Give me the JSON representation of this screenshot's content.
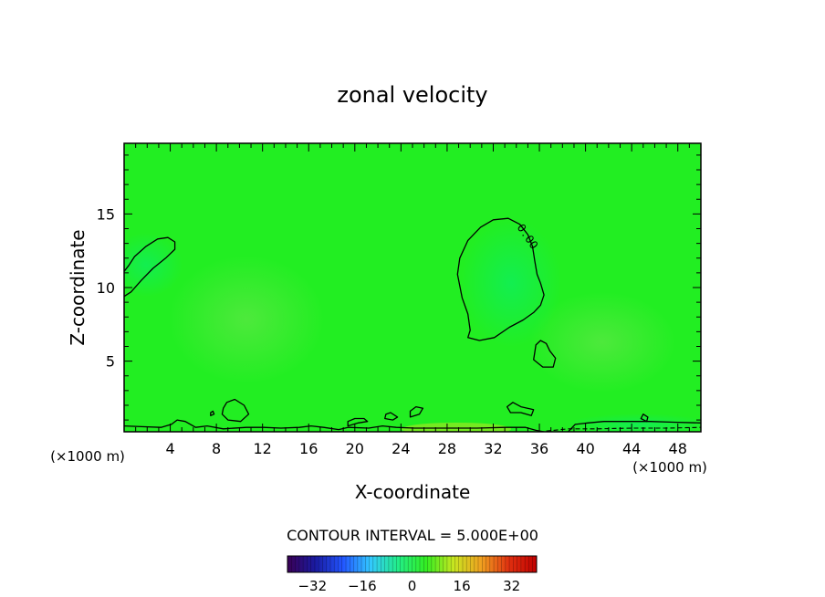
{
  "chart_data": {
    "type": "contour",
    "title": "zonal velocity",
    "xlabel": "X-coordinate",
    "ylabel": "Z-coordinate",
    "x_unit_label": "(×1000 m)",
    "x_unit_label_left": "(×1000 m)",
    "xlim": [
      0,
      50
    ],
    "ylim": [
      0.2,
      19.8
    ],
    "xticks": [
      4,
      8,
      12,
      16,
      20,
      24,
      28,
      32,
      36,
      40,
      44,
      48
    ],
    "yticks": [
      5,
      10,
      15
    ],
    "contour_interval_label": "CONTOUR INTERVAL = 5.000E+00",
    "contour_label": "0.00",
    "field_color": "#22ee22",
    "contour_color": "#000000",
    "colorbar": {
      "range": [
        -40,
        40
      ],
      "ticks": [
        -32,
        -16,
        0,
        16,
        32
      ],
      "tick_labels": [
        "−32",
        "−16",
        "0",
        "16",
        "32"
      ],
      "stops": [
        "#3a0055",
        "#1a1aa0",
        "#2255ff",
        "#33c8ff",
        "#22ee88",
        "#33ee22",
        "#c8e620",
        "#f0a020",
        "#e03010",
        "#c00000"
      ]
    },
    "contours": [
      {
        "name": "left-vortex",
        "points": [
          [
            0,
            9.4
          ],
          [
            0.6,
            9.7
          ],
          [
            1.5,
            10.5
          ],
          [
            2.5,
            11.3
          ],
          [
            3.6,
            12
          ],
          [
            4.4,
            12.6
          ],
          [
            4.4,
            13.1
          ],
          [
            3.8,
            13.4
          ],
          [
            2.9,
            13.3
          ],
          [
            1.9,
            12.8
          ],
          [
            0.9,
            12.1
          ],
          [
            0.4,
            11.5
          ],
          [
            0,
            11.1
          ]
        ],
        "closed": false
      },
      {
        "name": "central-vortex",
        "points": [
          [
            29.8,
            6.6
          ],
          [
            30.8,
            6.4
          ],
          [
            32.1,
            6.6
          ],
          [
            33.4,
            7.3
          ],
          [
            34.6,
            7.8
          ],
          [
            35.5,
            8.3
          ],
          [
            36.1,
            8.8
          ],
          [
            36.4,
            9.5
          ],
          [
            36.1,
            10.3
          ],
          [
            35.8,
            10.9
          ],
          [
            35.6,
            11.8
          ],
          [
            35.4,
            12.8
          ],
          [
            35,
            13.6
          ],
          [
            34.3,
            14.3
          ],
          [
            33.3,
            14.7
          ],
          [
            32,
            14.6
          ],
          [
            30.9,
            14.1
          ],
          [
            29.8,
            13.2
          ],
          [
            29.1,
            12
          ],
          [
            28.9,
            10.9
          ],
          [
            29.3,
            9.3
          ],
          [
            29.8,
            8.2
          ],
          [
            30,
            7.1
          ]
        ],
        "closed": true
      },
      {
        "name": "small-cell-a",
        "points": [
          [
            35.5,
            5.1
          ],
          [
            36.3,
            4.6
          ],
          [
            37.2,
            4.6
          ],
          [
            37.4,
            5.2
          ],
          [
            36.9,
            5.7
          ],
          [
            36.6,
            6.2
          ],
          [
            36.1,
            6.4
          ],
          [
            35.7,
            6.1
          ],
          [
            35.6,
            5.6
          ]
        ],
        "closed": true
      },
      {
        "name": "small-cell-b",
        "points": [
          [
            8.5,
            1.4
          ],
          [
            9,
            1.0
          ],
          [
            10.1,
            0.9
          ],
          [
            10.8,
            1.4
          ],
          [
            10.4,
            2.0
          ],
          [
            9.6,
            2.4
          ],
          [
            8.9,
            2.2
          ],
          [
            8.6,
            1.8
          ]
        ],
        "closed": true
      },
      {
        "name": "small-cell-c",
        "points": [
          [
            33.5,
            1.5
          ],
          [
            34.4,
            1.5
          ],
          [
            35.3,
            1.3
          ],
          [
            35.5,
            1.7
          ],
          [
            34.4,
            1.9
          ],
          [
            33.7,
            2.2
          ],
          [
            33.2,
            1.9
          ]
        ],
        "closed": true
      },
      {
        "name": "small-cell-d",
        "points": [
          [
            24.8,
            1.2
          ],
          [
            25.6,
            1.4
          ],
          [
            25.9,
            1.8
          ],
          [
            25.3,
            1.9
          ],
          [
            24.8,
            1.6
          ]
        ],
        "closed": true
      },
      {
        "name": "small-cell-e",
        "points": [
          [
            22.6,
            1.1
          ],
          [
            23.3,
            1.0
          ],
          [
            23.7,
            1.2
          ],
          [
            23.1,
            1.5
          ],
          [
            22.7,
            1.4
          ]
        ],
        "closed": true
      },
      {
        "name": "small-cell-f",
        "points": [
          [
            19.4,
            0.6
          ],
          [
            20.3,
            0.8
          ],
          [
            21.1,
            0.9
          ],
          [
            20.8,
            1.1
          ],
          [
            20,
            1.1
          ],
          [
            19.4,
            0.9
          ]
        ],
        "closed": true
      },
      {
        "name": "small-cell-g",
        "points": [
          [
            44.8,
            1.1
          ],
          [
            45.3,
            0.9
          ],
          [
            45.4,
            1.2
          ],
          [
            45,
            1.4
          ]
        ],
        "closed": true
      },
      {
        "name": "small-cell-h",
        "points": [
          [
            7.5,
            1.3
          ],
          [
            7.8,
            1.4
          ],
          [
            7.7,
            1.6
          ],
          [
            7.5,
            1.5
          ]
        ],
        "closed": true
      },
      {
        "name": "bottom-boundary",
        "points": [
          [
            0,
            0.6
          ],
          [
            1.5,
            0.55
          ],
          [
            3.2,
            0.5
          ],
          [
            4.1,
            0.7
          ],
          [
            4.6,
            1.0
          ],
          [
            5.3,
            0.9
          ],
          [
            6.2,
            0.5
          ],
          [
            7.2,
            0.6
          ],
          [
            8.6,
            0.4
          ],
          [
            10.6,
            0.5
          ],
          [
            12.1,
            0.5
          ],
          [
            13.6,
            0.45
          ],
          [
            15.2,
            0.5
          ],
          [
            16.2,
            0.6
          ],
          [
            17.3,
            0.5
          ],
          [
            18.6,
            0.35
          ],
          [
            19.4,
            0.5
          ],
          [
            21.2,
            0.45
          ],
          [
            22.4,
            0.6
          ],
          [
            23.6,
            0.5
          ],
          [
            25.2,
            0.45
          ],
          [
            26.5,
            0.45
          ],
          [
            28.6,
            0.45
          ],
          [
            30.6,
            0.45
          ],
          [
            33,
            0.5
          ],
          [
            34.8,
            0.5
          ],
          [
            35.7,
            0.3
          ],
          [
            36.4,
            0.2
          ]
        ],
        "closed": false
      },
      {
        "name": "bottom-right",
        "points": [
          [
            38.5,
            0.2
          ],
          [
            39.1,
            0.7
          ],
          [
            40.2,
            0.8
          ],
          [
            41.6,
            0.9
          ],
          [
            43.6,
            0.9
          ],
          [
            45.6,
            0.9
          ],
          [
            47.6,
            0.85
          ],
          [
            50,
            0.8
          ]
        ],
        "closed": false
      }
    ],
    "dashed_contours": [
      {
        "name": "dashed-bottom",
        "points": [
          [
            36.6,
            0.25
          ],
          [
            38.5,
            0.4
          ],
          [
            41,
            0.4
          ],
          [
            44,
            0.45
          ],
          [
            47,
            0.45
          ],
          [
            50,
            0.5
          ]
        ]
      }
    ],
    "label_positions": [
      [
        34.2,
        13.9
      ]
    ]
  }
}
